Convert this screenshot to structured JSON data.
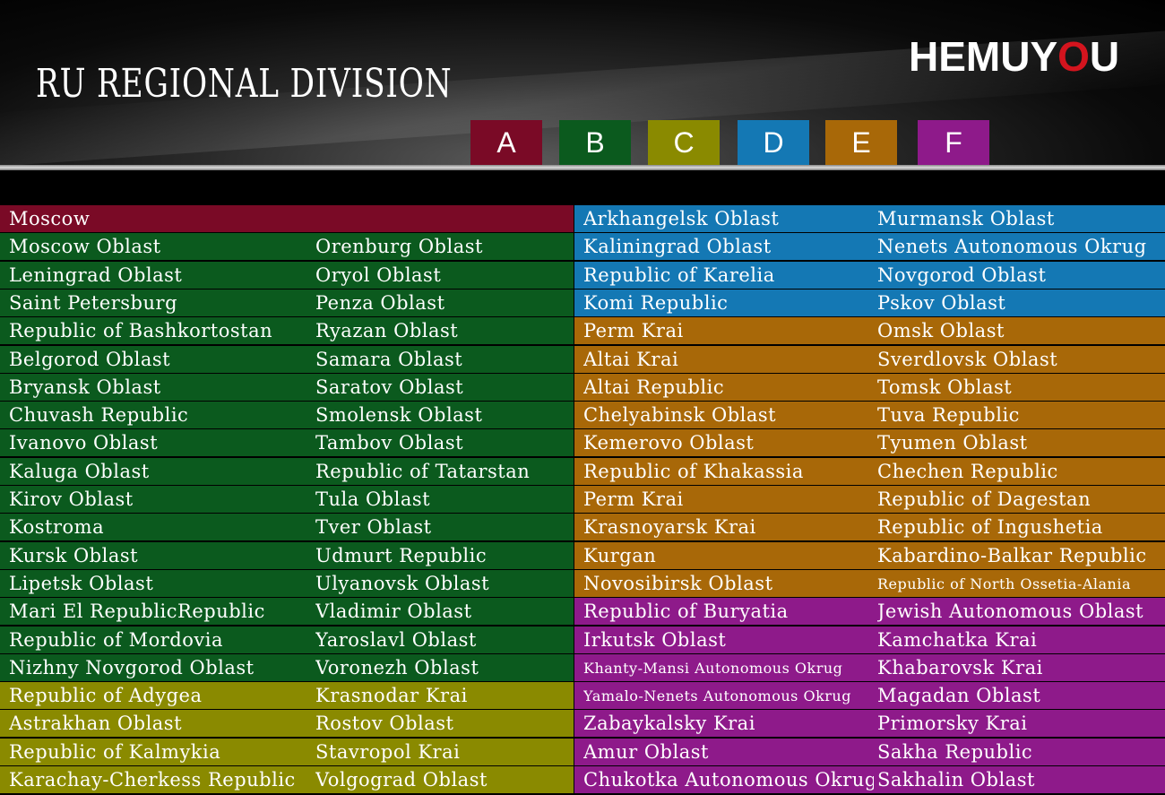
{
  "header": {
    "title": "RU REGIONAL DIVISION",
    "logo_left": "HEMUY",
    "logo_o": "O",
    "logo_right": "U"
  },
  "legend": [
    {
      "label": "A",
      "color": "#7a0a26"
    },
    {
      "label": "B",
      "color": "#0b5a1e"
    },
    {
      "label": "C",
      "color": "#8a8a00"
    },
    {
      "label": "D",
      "color": "#1478b4"
    },
    {
      "label": "E",
      "color": "#a86808"
    },
    {
      "label": "F",
      "color": "#8e1a8a"
    }
  ],
  "left_rows": [
    {
      "zone": "A",
      "col1": "Moscow",
      "col2": ""
    },
    {
      "zone": "B",
      "col1": "Moscow Oblast",
      "col2": "Orenburg Oblast"
    },
    {
      "zone": "B",
      "col1": "Leningrad Oblast",
      "col2": "Oryol Oblast"
    },
    {
      "zone": "B",
      "col1": "Saint Petersburg",
      "col2": "Penza Oblast"
    },
    {
      "zone": "B",
      "col1": "Republic of Bashkortostan",
      "col2": "Ryazan Oblast"
    },
    {
      "zone": "B",
      "col1": "Belgorod Oblast",
      "col2": "Samara Oblast"
    },
    {
      "zone": "B",
      "col1": "Bryansk Oblast",
      "col2": "Saratov Oblast"
    },
    {
      "zone": "B",
      "col1": "Chuvash Republic",
      "col2": "Smolensk Oblast"
    },
    {
      "zone": "B",
      "col1": "Ivanovo Oblast",
      "col2": "Tambov Oblast"
    },
    {
      "zone": "B",
      "col1": "Kaluga Oblast",
      "col2": "Republic of Tatarstan"
    },
    {
      "zone": "B",
      "col1": "Kirov Oblast",
      "col2": "Tula Oblast"
    },
    {
      "zone": "B",
      "col1": "Kostroma",
      "col2": "Tver Oblast"
    },
    {
      "zone": "B",
      "col1": "Kursk Oblast",
      "col2": "Udmurt Republic"
    },
    {
      "zone": "B",
      "col1": "Lipetsk Oblast",
      "col2": "Ulyanovsk Oblast"
    },
    {
      "zone": "B",
      "col1": "Mari El RepublicRepublic",
      "col2": "Vladimir Oblast"
    },
    {
      "zone": "B",
      "col1": "Republic of Mordovia",
      "col2": "Yaroslavl Oblast"
    },
    {
      "zone": "B",
      "col1": "Nizhny Novgorod Oblast",
      "col2": "Voronezh Oblast"
    },
    {
      "zone": "C",
      "col1": "Republic of Adygea",
      "col2": "Krasnodar Krai"
    },
    {
      "zone": "C",
      "col1": "Astrakhan Oblast",
      "col2": "Rostov Oblast"
    },
    {
      "zone": "C",
      "col1": "Republic of Kalmykia",
      "col2": "Stavropol Krai"
    },
    {
      "zone": "C",
      "col1": "Karachay-Cherkess Republic",
      "col2": "Volgograd Oblast"
    }
  ],
  "right_rows": [
    {
      "zone": "D",
      "col1": "Arkhangelsk Oblast",
      "col2": "Murmansk Oblast"
    },
    {
      "zone": "D",
      "col1": "Kaliningrad Oblast",
      "col2": "Nenets Autonomous Okrug"
    },
    {
      "zone": "D",
      "col1": "Republic of Karelia",
      "col2": "Novgorod Oblast"
    },
    {
      "zone": "D",
      "col1": "Komi Republic",
      "col2": "Pskov Oblast"
    },
    {
      "zone": "E",
      "col1": "Perm Krai",
      "col2": "Omsk Oblast"
    },
    {
      "zone": "E",
      "col1": "Altai Krai",
      "col2": "Sverdlovsk Oblast"
    },
    {
      "zone": "E",
      "col1": "Altai Republic",
      "col2": "Tomsk Oblast"
    },
    {
      "zone": "E",
      "col1": "Chelyabinsk Oblast",
      "col2": "Tuva Republic"
    },
    {
      "zone": "E",
      "col1": "Kemerovo Oblast",
      "col2": "Tyumen Oblast"
    },
    {
      "zone": "E",
      "col1": "Republic of Khakassia",
      "col2": "Chechen Republic"
    },
    {
      "zone": "E",
      "col1": "Perm Krai",
      "col2": "Republic of Dagestan"
    },
    {
      "zone": "E",
      "col1": "Krasnoyarsk Krai",
      "col2": "Republic of Ingushetia"
    },
    {
      "zone": "E",
      "col1": "Kurgan",
      "col2": "Kabardino-Balkar Republic"
    },
    {
      "zone": "E",
      "col1": "Novosibirsk Oblast",
      "col2": "Republic of North Ossetia-Alania"
    },
    {
      "zone": "F",
      "col1": "Republic of Buryatia",
      "col2": "Jewish Autonomous Oblast"
    },
    {
      "zone": "F",
      "col1": "Irkutsk Oblast",
      "col2": "Kamchatka Krai"
    },
    {
      "zone": "F",
      "col1": "Khanty-Mansi Autonomous Okrug",
      "col2": "Khabarovsk Krai"
    },
    {
      "zone": "F",
      "col1": "Yamalo-Nenets Autonomous Okrug",
      "col2": "Magadan Oblast"
    },
    {
      "zone": "F",
      "col1": "Zabaykalsky Krai",
      "col2": "Primorsky Krai"
    },
    {
      "zone": "F",
      "col1": "Amur Oblast",
      "col2": "Sakha Republic"
    },
    {
      "zone": "F",
      "col1": "Chukotka  Autonomous Okrug",
      "col2": "Sakhalin Oblast"
    }
  ]
}
